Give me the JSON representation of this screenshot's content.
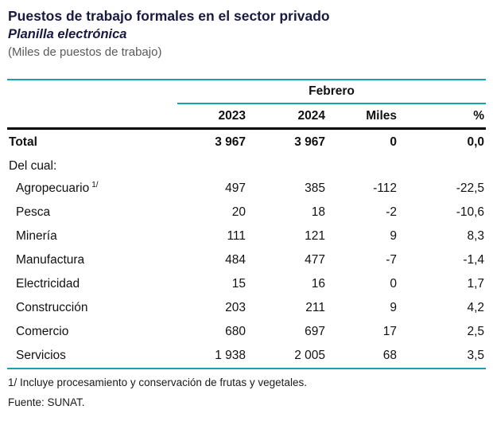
{
  "page": {
    "title": "Puestos de trabajo formales en el sector privado",
    "subtitle": "Planilla electrónica",
    "unit_note": "(Miles de puestos de trabajo)"
  },
  "table": {
    "group_header": "Febrero",
    "columns": [
      "2023",
      "2024",
      "Miles",
      "%"
    ],
    "total": {
      "label": "Total",
      "values": [
        "3 967",
        "3 967",
        "0",
        "0,0"
      ]
    },
    "section_label": "Del cual:",
    "rows": [
      {
        "label": "Agropecuario",
        "sup": "1/",
        "values": [
          "497",
          "385",
          "-112",
          "-22,5"
        ]
      },
      {
        "label": "Pesca",
        "values": [
          "20",
          "18",
          "-2",
          "-10,6"
        ]
      },
      {
        "label": "Minería",
        "values": [
          "111",
          "121",
          "9",
          "8,3"
        ]
      },
      {
        "label": "Manufactura",
        "values": [
          "484",
          "477",
          "-7",
          "-1,4"
        ]
      },
      {
        "label": "Electricidad",
        "values": [
          "15",
          "16",
          "0",
          "1,7"
        ]
      },
      {
        "label": "Construcción",
        "values": [
          "203",
          "211",
          "9",
          "4,2"
        ]
      },
      {
        "label": "Comercio",
        "values": [
          "680",
          "697",
          "17",
          "2,5"
        ]
      },
      {
        "label": "Servicios",
        "values": [
          "1 938",
          "2 005",
          "68",
          "3,5"
        ]
      }
    ]
  },
  "footer": {
    "footnote": "1/ Incluye procesamiento y conservación de frutas y vegetales.",
    "source": "Fuente: SUNAT."
  },
  "colors": {
    "accent_line": "#17a2b2",
    "header_rule": "#000000",
    "title_text": "#1a1a40",
    "muted_text": "#595959"
  }
}
